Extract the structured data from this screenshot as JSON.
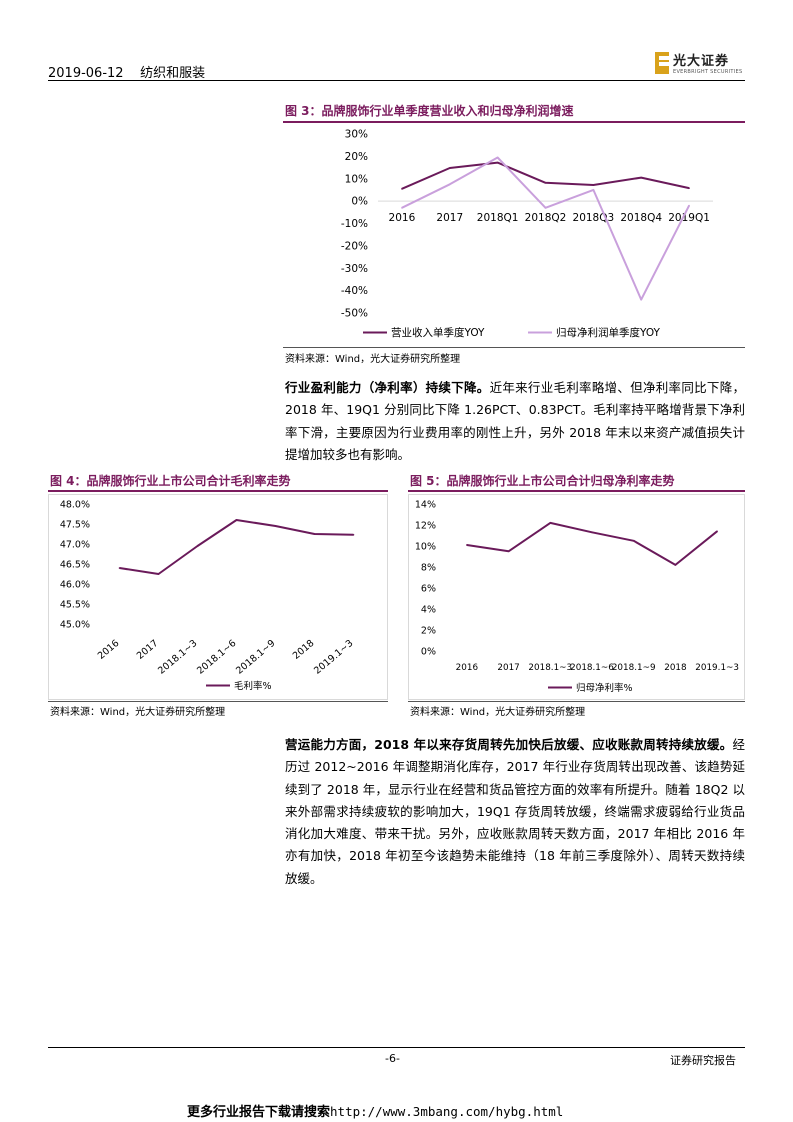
{
  "header": {
    "date": "2019-06-12",
    "industry": "纺织和服装",
    "logo_cn": "光大证券",
    "logo_en": "EVERBRIGHT SECURITIES",
    "brand_color": "#7b1c5e",
    "logo_color": "#d9a21b"
  },
  "figure3": {
    "title": "图 3：品牌服饰行业单季度营业收入和归母净利润增速",
    "source": "资料来源：Wind，光大证券研究所整理"
  },
  "paragraph1": {
    "lead": "行业盈利能力（净利率）持续下降。",
    "body": "近年来行业毛利率略增、但净利率同比下降，2018 年、19Q1 分别同比下降 1.26PCT、0.83PCT。毛利率持平略增背景下净利率下滑，主要原因为行业费用率的刚性上升，另外 2018 年末以来资产减值损失计提增加较多也有影响。"
  },
  "figure4": {
    "title": "图 4：品牌服饰行业上市公司合计毛利率走势",
    "source": "资料来源：Wind，光大证券研究所整理"
  },
  "figure5": {
    "title": "图 5：品牌服饰行业上市公司合计归母净利率走势",
    "source": "资料来源：Wind，光大证券研究所整理"
  },
  "paragraph2": {
    "lead": "营运能力方面，2018 年以来存货周转先加快后放缓、应收账款周转持续放缓。",
    "body": "经历过 2012~2016 年调整期消化库存，2017 年行业存货周转出现改善、该趋势延续到了 2018 年，显示行业在经营和货品管控方面的效率有所提升。随着 18Q2 以来外部需求持续疲软的影响加大，19Q1 存货周转放缓，终端需求疲弱给行业货品消化加大难度、带来干扰。另外，应收账款周转天数方面，2017 年相比 2016 年亦有加快，2018 年初至今该趋势未能维持（18 年前三季度除外）、周转天数持续放缓。"
  },
  "footer": {
    "page": "-6-",
    "label": "证券研究报告",
    "more_text": "更多行业报告下载请搜索",
    "url": "http://www.3mbang.com/hybg.html"
  },
  "chart_data": [
    {
      "type": "line",
      "categories": [
        "2016",
        "2017",
        "2018Q1",
        "2018Q2",
        "2018Q3",
        "2018Q4",
        "2019Q1"
      ],
      "series": [
        {
          "name": "营业收入单季度YOY",
          "values": [
            5.5,
            14.8,
            17.2,
            8.2,
            7.2,
            10.5,
            5.8
          ],
          "color": "#6a1a5a"
        },
        {
          "name": "归母净利润单季度YOY",
          "values": [
            -3,
            7.5,
            19.5,
            -3,
            5,
            -44,
            -2
          ],
          "color": "#c9a0dc"
        }
      ],
      "ylim": [
        -50,
        30
      ],
      "yticks": [
        "30%",
        "20%",
        "10%",
        "0%",
        "-10%",
        "-20%",
        "-30%",
        "-40%",
        "-50%"
      ],
      "grid": false,
      "legend": "bottom"
    },
    {
      "type": "line",
      "categories": [
        "2016",
        "2017",
        "2018.1~3",
        "2018.1~6",
        "2018.1~9",
        "2018",
        "2019.1~3"
      ],
      "series": [
        {
          "name": "毛利率%",
          "values": [
            46.4,
            46.25,
            46.95,
            47.6,
            47.45,
            47.25,
            47.23
          ],
          "color": "#6a1a5a"
        }
      ],
      "ylim": [
        45.0,
        48.0
      ],
      "yticks": [
        "48.0%",
        "47.5%",
        "47.0%",
        "46.5%",
        "46.0%",
        "45.5%",
        "45.0%"
      ],
      "grid": false,
      "legend": "bottom"
    },
    {
      "type": "line",
      "categories": [
        "2016",
        "2017",
        "2018.1~3",
        "2018.1~6",
        "2018.1~9",
        "2018",
        "2019.1~3"
      ],
      "category_labels": [
        "2016",
        "2017",
        "2018.1~3",
        "2018.1~6",
        "2018.1~9",
        "2018",
        "2019.1~3"
      ],
      "series": [
        {
          "name": "归母净利率%",
          "values": [
            10.1,
            9.5,
            12.2,
            11.3,
            10.5,
            8.2,
            11.4
          ],
          "color": "#6a1a5a"
        }
      ],
      "ylim": [
        0,
        14
      ],
      "yticks": [
        "14%",
        "12%",
        "10%",
        "8%",
        "6%",
        "4%",
        "2%",
        "0%"
      ],
      "grid": false,
      "legend": "bottom"
    }
  ]
}
